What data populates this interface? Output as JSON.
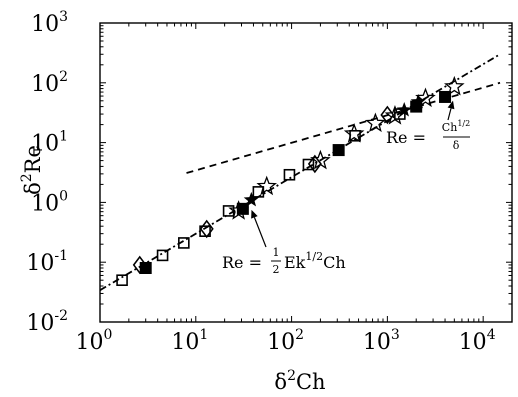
{
  "chart_data": {
    "type": "scatter",
    "title": "",
    "xlabel": {
      "base": "δ",
      "sup": "2",
      "rest": "Ch"
    },
    "ylabel": {
      "base": "δ",
      "sup": "2",
      "rest": "Re"
    },
    "xscale": "log",
    "yscale": "log",
    "xlim": [
      1,
      20000
    ],
    "ylim": [
      0.01,
      1000
    ],
    "grid": false,
    "legend": "none",
    "x_ticks": [
      {
        "value": 1,
        "base": "10",
        "exp": "0"
      },
      {
        "value": 10,
        "base": "10",
        "exp": "1"
      },
      {
        "value": 100,
        "base": "10",
        "exp": "2"
      },
      {
        "value": 1000,
        "base": "10",
        "exp": "3"
      },
      {
        "value": 10000,
        "base": "10",
        "exp": "4"
      }
    ],
    "y_ticks": [
      {
        "value": 0.01,
        "base": "10",
        "exp": "-2"
      },
      {
        "value": 0.1,
        "base": "10",
        "exp": "-1"
      },
      {
        "value": 1,
        "base": "10",
        "exp": "0"
      },
      {
        "value": 10,
        "base": "10",
        "exp": "1"
      },
      {
        "value": 100,
        "base": "10",
        "exp": "2"
      },
      {
        "value": 1000,
        "base": "10",
        "exp": "3"
      }
    ],
    "series": [
      {
        "marker": "open-square",
        "points": [
          [
            1.7,
            0.05
          ],
          [
            4.5,
            0.13
          ],
          [
            7.5,
            0.21
          ],
          [
            12.5,
            0.33
          ],
          [
            22,
            0.72
          ],
          [
            45,
            1.5
          ],
          [
            95,
            2.9
          ],
          [
            150,
            4.3
          ],
          [
            460,
            13
          ],
          [
            1350,
            30
          ]
        ]
      },
      {
        "marker": "filled-square",
        "points": [
          [
            3,
            0.08
          ],
          [
            31,
            0.78
          ],
          [
            310,
            7.5
          ],
          [
            2000,
            40
          ],
          [
            4000,
            58
          ]
        ]
      },
      {
        "marker": "open-diamond",
        "points": [
          [
            2.6,
            0.09
          ],
          [
            13,
            0.36
          ],
          [
            175,
            4.4
          ],
          [
            1000,
            29
          ]
        ]
      },
      {
        "marker": "open-star",
        "points": [
          [
            28,
            0.72
          ],
          [
            55,
            1.85
          ],
          [
            200,
            5
          ],
          [
            450,
            14
          ],
          [
            750,
            21
          ],
          [
            1200,
            28
          ],
          [
            2500,
            55
          ],
          [
            5000,
            86
          ]
        ]
      },
      {
        "marker": "filled-star",
        "points": [
          [
            38,
            1.1
          ],
          [
            1500,
            35
          ],
          [
            2100,
            48
          ]
        ]
      }
    ],
    "lines": [
      {
        "name": "linear",
        "style": "dash-dot",
        "x": [
          1,
          15000
        ],
        "y": [
          0.034,
          300
        ]
      },
      {
        "name": "sqrt",
        "style": "dashed",
        "x": [
          8,
          15000
        ],
        "y": [
          3.1,
          100
        ]
      }
    ],
    "annotations": [
      {
        "id": "linear-law",
        "text_lhs": "Re = ",
        "frac_num": "1",
        "frac_den": "2",
        "text_mid": "Ek",
        "sup": "1/2",
        "text_end": "Ch",
        "arrow_to": [
          30,
          1.1
        ]
      },
      {
        "id": "sqrt-law",
        "text_lhs": "Re = ",
        "frac_num_base": "Ch",
        "frac_num_sup": "1/2",
        "frac_den": "δ",
        "arrow_to": [
          4400,
          74
        ]
      }
    ]
  }
}
